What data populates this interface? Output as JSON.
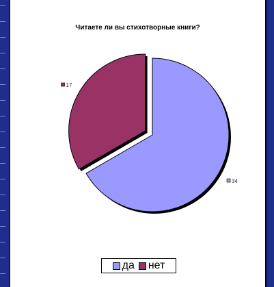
{
  "chart_data": {
    "type": "pie",
    "title": "Читаете ли вы стихотворные книги?",
    "categories": [
      "да",
      "нет"
    ],
    "values": [
      34,
      17
    ],
    "colors": [
      "#9999ff",
      "#993366"
    ],
    "exploded": [
      "нет"
    ],
    "legend": "bottom",
    "slice_labels": [
      "34",
      "17"
    ]
  }
}
